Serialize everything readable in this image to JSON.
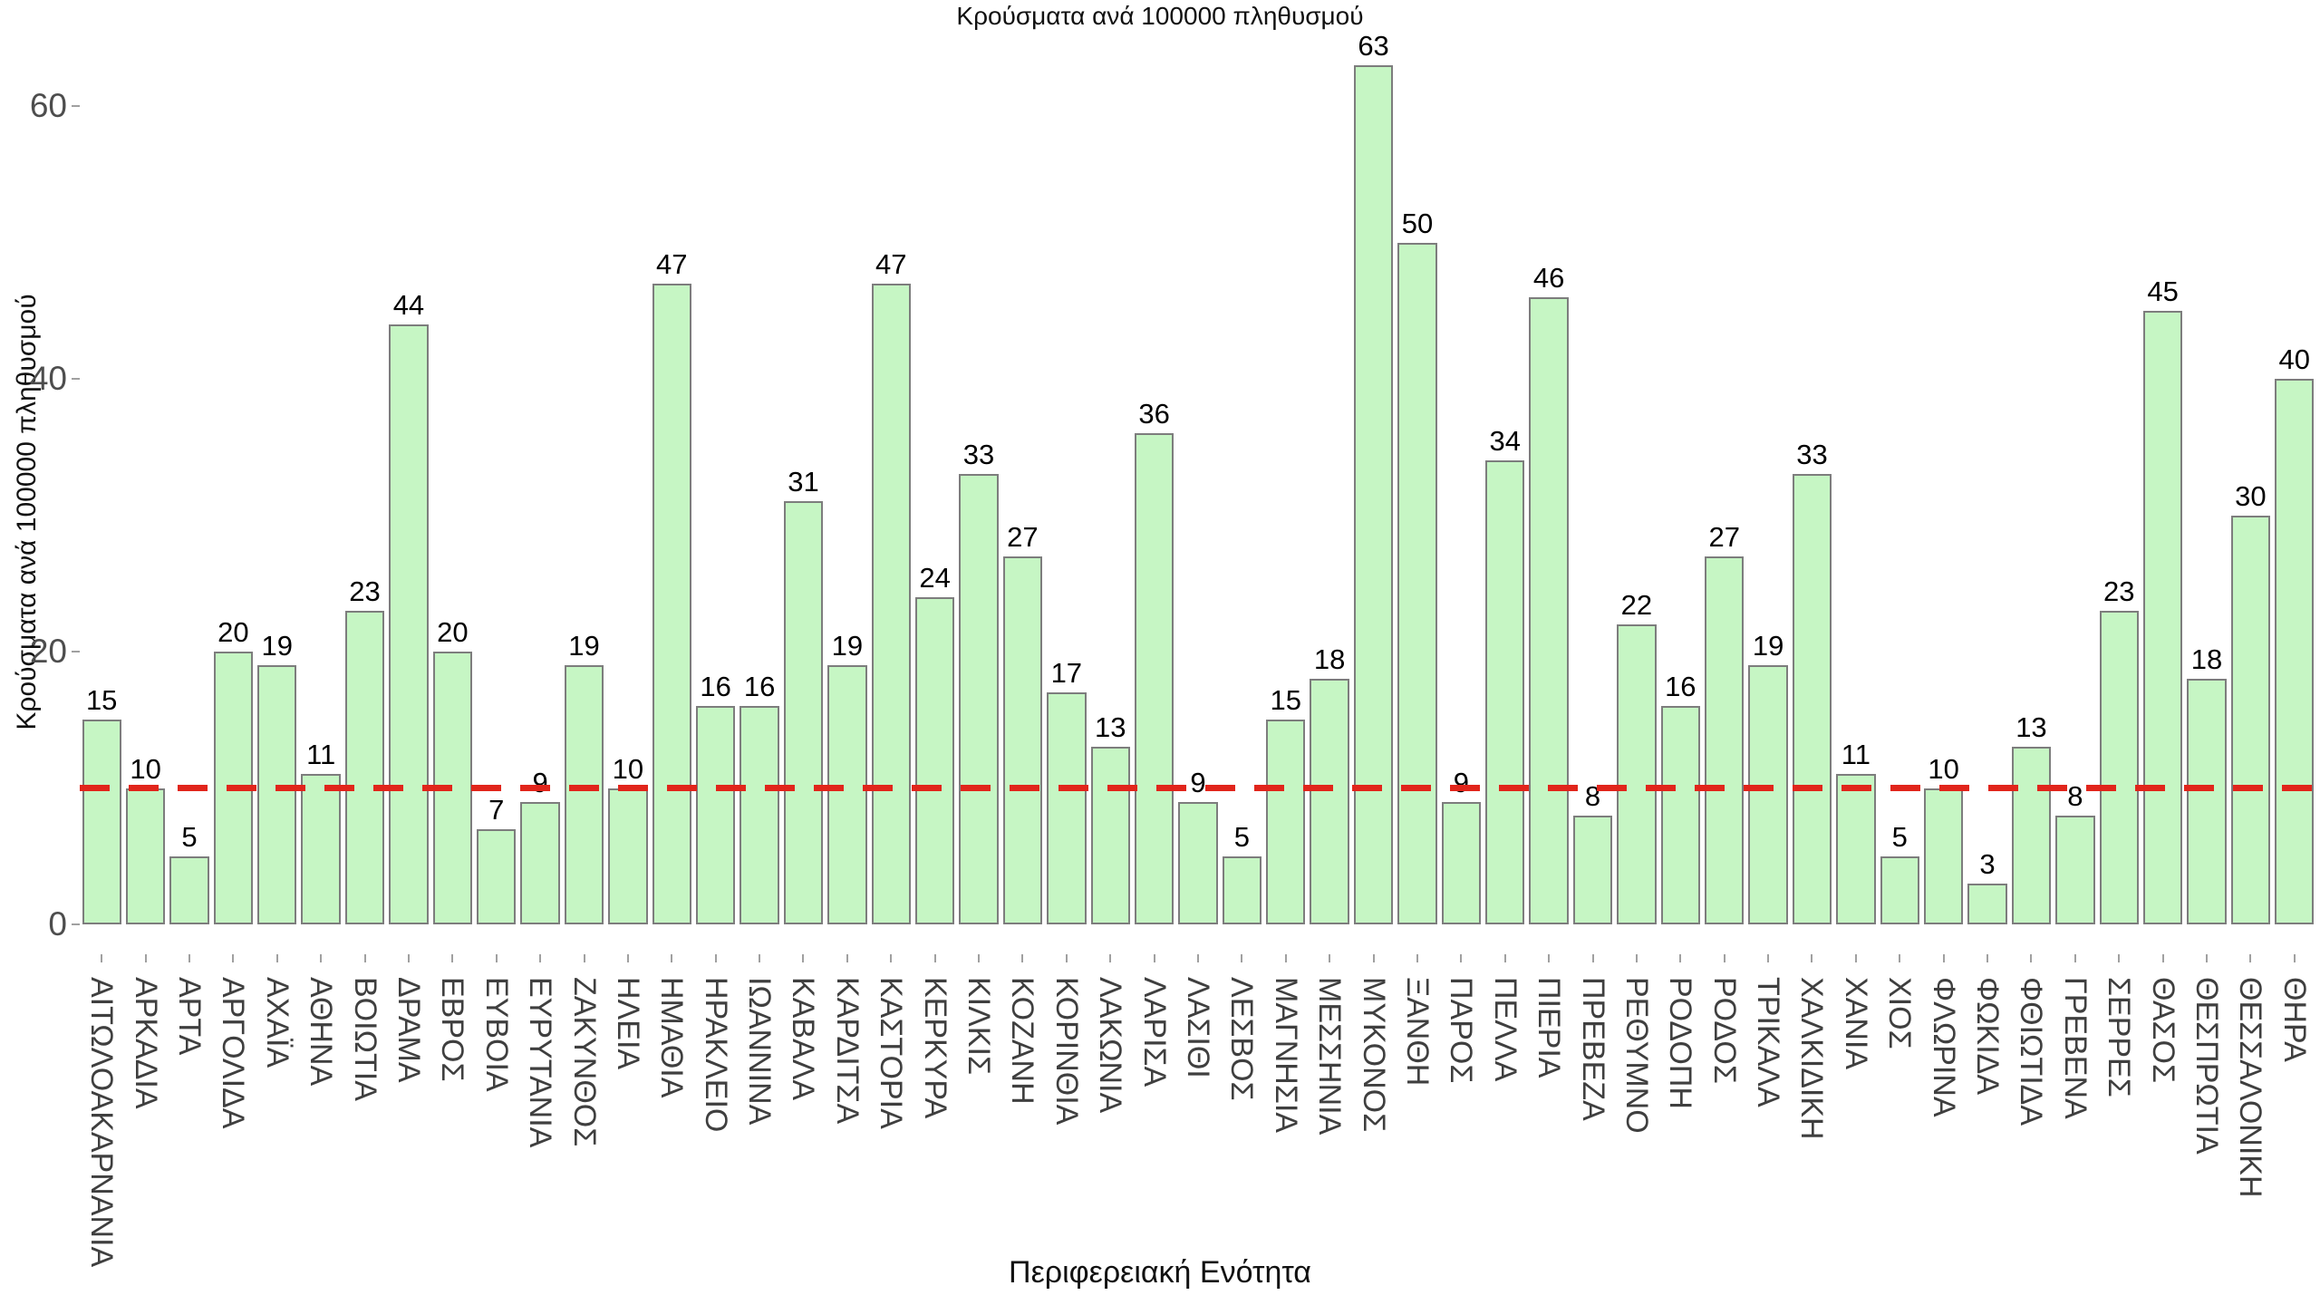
{
  "chart_data": {
    "type": "bar",
    "title": "Κρούσματα ανά 100000 πληθυσμού",
    "xlabel": "Περιφερειακή Ενότητα",
    "ylabel": "Κρούσματα ανά 100000 πληθυσμού",
    "ylim": [
      0,
      65
    ],
    "yticks": [
      0,
      20,
      40,
      60
    ],
    "grid": false,
    "legend": "none",
    "bar_color": "#c6f6c4",
    "bar_border_color": "#7d7d7d",
    "reference_line": {
      "value": 10,
      "color": "#e1251b",
      "style": "dashed"
    },
    "categories": [
      "ΑΙΤΩΛΟΑΚΑΡΝΑΝΙΑ",
      "ΑΡΚΑΔΙΑ",
      "ΑΡΤΑ",
      "ΑΡΓΟΛΙΔΑ",
      "ΑΧΑΪΑ",
      "ΑΘΗΝΑ",
      "ΒΟΙΩΤΙΑ",
      "ΔΡΑΜΑ",
      "ΕΒΡΟΣ",
      "ΕΥΒΟΙΑ",
      "ΕΥΡΥΤΑΝΙΑ",
      "ΖΑΚΥΝΘΟΣ",
      "ΗΛΕΙΑ",
      "ΗΜΑΘΙΑ",
      "ΗΡΑΚΛΕΙΟ",
      "ΙΩΑΝΝΙΝΑ",
      "ΚΑΒΑΛΑ",
      "ΚΑΡΔΙΤΣΑ",
      "ΚΑΣΤΟΡΙΑ",
      "ΚΕΡΚΥΡΑ",
      "ΚΙΛΚΙΣ",
      "ΚΟΖΑΝΗ",
      "ΚΟΡΙΝΘΙΑ",
      "ΛΑΚΩΝΙΑ",
      "ΛΑΡΙΣΑ",
      "ΛΑΣΙΘΙ",
      "ΛΕΣΒΟΣ",
      "ΜΑΓΝΗΣΙΑ",
      "ΜΕΣΣΗΝΙΑ",
      "ΜΥΚΟΝΟΣ",
      "ΞΑΝΘΗ",
      "ΠΑΡΟΣ",
      "ΠΕΛΛΑ",
      "ΠΙΕΡΙΑ",
      "ΠΡΕΒΕΖΑ",
      "ΡΕΘΥΜΝΟ",
      "ΡΟΔΟΠΗ",
      "ΡΟΔΟΣ",
      "ΤΡΙΚΑΛΑ",
      "ΧΑΛΚΙΔΙΚΗ",
      "ΧΑΝΙΑ",
      "ΧΙΟΣ",
      "ΦΛΩΡΙΝΑ",
      "ΦΩΚΙΔΑ",
      "ΦΘΙΩΤΙΔΑ",
      "ΓΡΕΒΕΝΑ",
      "ΣΕΡΡΕΣ",
      "ΘΑΣΟΣ",
      "ΘΕΣΠΡΩΤΙΑ",
      "ΘΕΣΣΑΛΟΝΙΚΗ",
      "ΘΗΡΑ"
    ],
    "values": [
      15,
      10,
      5,
      20,
      19,
      11,
      23,
      44,
      20,
      7,
      9,
      19,
      10,
      47,
      16,
      16,
      31,
      19,
      47,
      24,
      33,
      27,
      17,
      13,
      36,
      9,
      5,
      15,
      18,
      63,
      50,
      9,
      34,
      46,
      8,
      22,
      16,
      27,
      19,
      33,
      11,
      5,
      10,
      3,
      13,
      8,
      23,
      45,
      18,
      30,
      40
    ]
  }
}
